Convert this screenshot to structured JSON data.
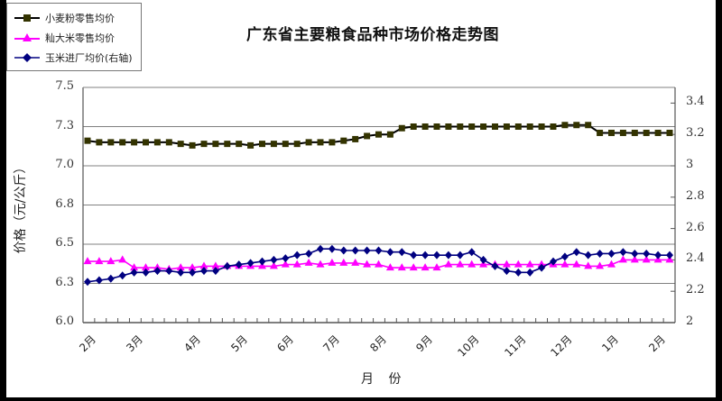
{
  "chart_data": {
    "type": "line",
    "title": "广东省主要粮食品种市场价格走势图",
    "xlabel": "月  份",
    "ylabel": "价格（元/公斤）",
    "y_left_range": [
      6.0,
      7.5
    ],
    "y_left_ticks": [
      "7.5",
      "7.3",
      "7.0",
      "6.8",
      "6.5",
      "6.3",
      "6.0"
    ],
    "y_left_tick_values": [
      7.5,
      7.25,
      7.0,
      6.75,
      6.5,
      6.25,
      6.0
    ],
    "y_right_range": [
      2.0,
      3.5
    ],
    "y_right_ticks": [
      "3.4",
      "3.2",
      "3",
      "2.8",
      "2.6",
      "2.4",
      "2.2",
      "2"
    ],
    "y_right_tick_values": [
      3.4,
      3.2,
      3.0,
      2.8,
      2.6,
      2.4,
      2.2,
      2.0
    ],
    "x_tick_labels": [
      "2月",
      "3月",
      "4月",
      "5月",
      "6月",
      "7月",
      "8月",
      "9月",
      "10月",
      "11月",
      "12月",
      "1月",
      "2月"
    ],
    "x_tick_indices": [
      0,
      4,
      9,
      13,
      17,
      21,
      25,
      29,
      33,
      37,
      41,
      45,
      49
    ],
    "grid": "horizontal",
    "legend_position": "top-left",
    "series": [
      {
        "name": "小麦粉零售均价",
        "axis": "left",
        "color": "#000000",
        "marker": "square",
        "marker_color": "#333300",
        "values": [
          7.16,
          7.15,
          7.15,
          7.15,
          7.15,
          7.15,
          7.15,
          7.15,
          7.14,
          7.13,
          7.14,
          7.14,
          7.14,
          7.14,
          7.13,
          7.14,
          7.14,
          7.14,
          7.14,
          7.15,
          7.15,
          7.15,
          7.16,
          7.17,
          7.19,
          7.2,
          7.2,
          7.24,
          7.25,
          7.25,
          7.25,
          7.25,
          7.25,
          7.25,
          7.25,
          7.25,
          7.25,
          7.25,
          7.25,
          7.25,
          7.25,
          7.26,
          7.26,
          7.26,
          7.21,
          7.21,
          7.21,
          7.21,
          7.21,
          7.21,
          7.21
        ]
      },
      {
        "name": "籼大米零售均价",
        "axis": "left",
        "color": "#FF00FF",
        "marker": "triangle",
        "marker_color": "#FF00FF",
        "values": [
          6.39,
          6.39,
          6.39,
          6.4,
          6.35,
          6.35,
          6.35,
          6.34,
          6.35,
          6.35,
          6.36,
          6.36,
          6.36,
          6.36,
          6.36,
          6.36,
          6.36,
          6.37,
          6.37,
          6.38,
          6.37,
          6.38,
          6.38,
          6.38,
          6.37,
          6.37,
          6.35,
          6.35,
          6.35,
          6.35,
          6.35,
          6.37,
          6.37,
          6.37,
          6.37,
          6.37,
          6.37,
          6.37,
          6.37,
          6.37,
          6.37,
          6.37,
          6.37,
          6.36,
          6.36,
          6.37,
          6.4,
          6.4,
          6.4,
          6.4,
          6.4
        ]
      },
      {
        "name": "玉米进厂均价（右轴）",
        "axis": "right",
        "color": "#000080",
        "marker": "diamond",
        "marker_color": "#000080",
        "values": [
          2.26,
          2.27,
          2.28,
          2.3,
          2.32,
          2.32,
          2.33,
          2.33,
          2.32,
          2.32,
          2.33,
          2.33,
          2.36,
          2.37,
          2.38,
          2.39,
          2.4,
          2.41,
          2.43,
          2.44,
          2.47,
          2.47,
          2.46,
          2.46,
          2.46,
          2.46,
          2.45,
          2.45,
          2.43,
          2.43,
          2.43,
          2.43,
          2.43,
          2.45,
          2.4,
          2.36,
          2.33,
          2.32,
          2.32,
          2.35,
          2.39,
          2.42,
          2.45,
          2.43,
          2.44,
          2.44,
          2.45,
          2.44,
          2.44,
          2.43,
          2.43
        ]
      }
    ]
  },
  "legend": {
    "items": [
      {
        "label": "小麦粉零售均价"
      },
      {
        "label": "籼大米零售均价"
      },
      {
        "label": "玉米进厂均价(右轴)"
      }
    ]
  },
  "axes": {
    "left_title": "价格（元/公斤）",
    "x_title": "月  份"
  }
}
